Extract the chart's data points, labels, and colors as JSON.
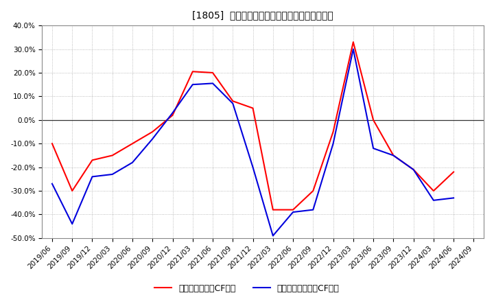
{
  "title": "[1805]  有利子負債キャッシュフロー比率の推移",
  "legend_labels": [
    "有利子負債営業CF比率",
    "有利子負債フリーCF比率"
  ],
  "x_labels": [
    "2019/06",
    "2019/09",
    "2019/12",
    "2020/03",
    "2020/06",
    "2020/09",
    "2020/12",
    "2021/03",
    "2021/06",
    "2021/09",
    "2021/12",
    "2022/03",
    "2022/06",
    "2022/09",
    "2022/12",
    "2023/03",
    "2023/06",
    "2023/09",
    "2023/12",
    "2024/03",
    "2024/06",
    "2024/09"
  ],
  "series_operating": [
    -10.0,
    -30.0,
    -17.0,
    -15.0,
    -10.0,
    -5.0,
    2.0,
    20.5,
    20.0,
    8.0,
    5.0,
    -38.0,
    -38.0,
    -30.0,
    -5.0,
    33.0,
    0.0,
    -15.0,
    -21.0,
    -30.0,
    -22.0,
    null
  ],
  "series_free": [
    -27.0,
    -44.0,
    -24.0,
    -23.0,
    -18.0,
    -8.0,
    3.0,
    15.0,
    15.5,
    7.0,
    -20.0,
    -49.0,
    -39.0,
    -38.0,
    -10.0,
    30.0,
    -12.0,
    -15.0,
    -21.0,
    -34.0,
    -33.0,
    null
  ],
  "ylim": [
    -50.0,
    40.0
  ],
  "yticks": [
    -50.0,
    -40.0,
    -30.0,
    -20.0,
    -10.0,
    0.0,
    10.0,
    20.0,
    30.0,
    40.0
  ],
  "color_operating": "#ff0000",
  "color_free": "#0000dd",
  "background_color": "#ffffff",
  "grid_color": "#aaaaaa",
  "title_fontsize": 12,
  "tick_fontsize": 7.5,
  "legend_fontsize": 9
}
